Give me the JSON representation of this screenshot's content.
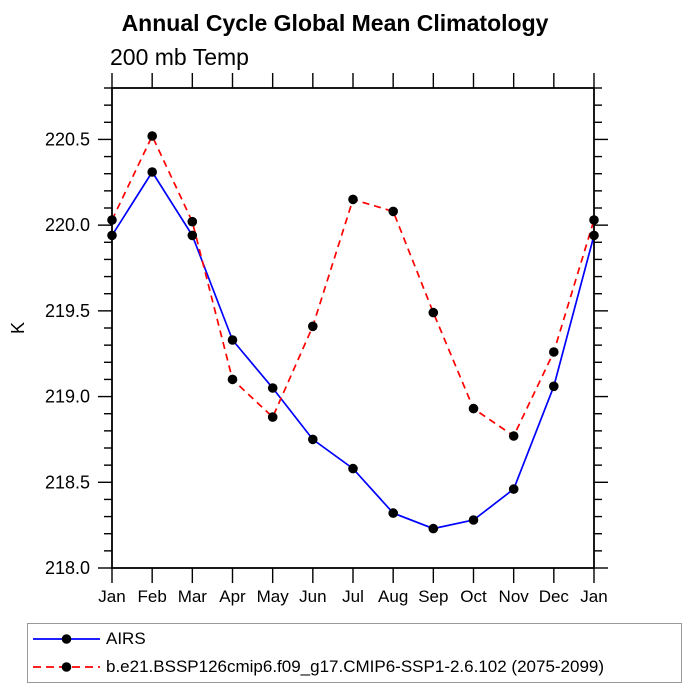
{
  "chart_data": {
    "type": "line",
    "title": "Annual Cycle Global Mean Climatology",
    "subtitle": "200 mb Temp",
    "xlabel": "",
    "ylabel": "K",
    "categories": [
      "Jan",
      "Feb",
      "Mar",
      "Apr",
      "May",
      "Jun",
      "Jul",
      "Aug",
      "Sep",
      "Oct",
      "Nov",
      "Dec",
      "Jan"
    ],
    "ylim": [
      218.0,
      220.8
    ],
    "ytick_major": [
      218.0,
      218.5,
      219.0,
      219.5,
      220.0,
      220.5
    ],
    "ytick_minor_step": 0.1,
    "grid": false,
    "legend_position": "bottom-left-box",
    "series": [
      {
        "name": "AIRS",
        "color": "#0000ff",
        "line_style": "solid",
        "marker": "filled-circle",
        "marker_color": "#000000",
        "values": [
          219.94,
          220.31,
          219.94,
          219.33,
          219.05,
          218.75,
          218.58,
          218.32,
          218.23,
          218.28,
          218.46,
          219.06,
          219.94
        ]
      },
      {
        "name": "b.e21.BSSP126cmip6.f09_g17.CMIP6-SSP1-2.6.102 (2075-2099)",
        "color": "#ff0000",
        "line_style": "dashed",
        "marker": "filled-circle",
        "marker_color": "#000000",
        "values": [
          220.03,
          220.52,
          220.02,
          219.1,
          218.88,
          219.41,
          220.15,
          220.08,
          219.49,
          218.93,
          218.77,
          219.26,
          220.03
        ]
      }
    ]
  }
}
